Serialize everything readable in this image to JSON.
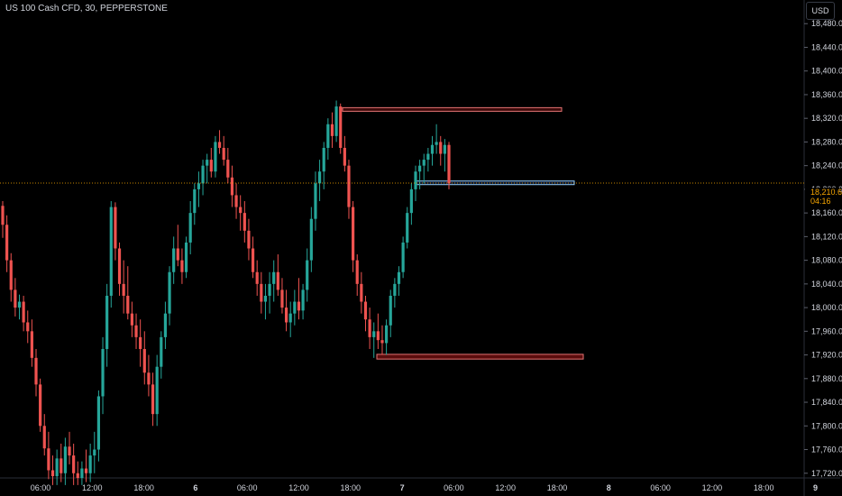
{
  "header": {
    "title": "US 100 Cash CFD, 30, PEPPERSTONE"
  },
  "currency_button": "USD",
  "current_price": {
    "value": "18,210.6",
    "countdown": "04:16",
    "color": "#f7a600"
  },
  "colors": {
    "up": "#26a69a",
    "down": "#ef5350",
    "background": "#000000"
  },
  "chart_data": {
    "type": "candlestick",
    "y_ticks": [
      "18,480.0",
      "18,440.0",
      "18,400.0",
      "18,360.0",
      "18,320.0",
      "18,280.0",
      "18,240.0",
      "18,200.0",
      "18,160.0",
      "18,120.0",
      "18,080.0",
      "18,040.0",
      "18,000.0",
      "17,960.0",
      "17,920.0",
      "17,880.0",
      "17,840.0",
      "17,800.0",
      "17,760.0",
      "17,720.0"
    ],
    "x_ticks": [
      {
        "label": "06:00",
        "bold": false
      },
      {
        "label": "12:00",
        "bold": false
      },
      {
        "label": "18:00",
        "bold": false
      },
      {
        "label": "6",
        "bold": true
      },
      {
        "label": "06:00",
        "bold": false
      },
      {
        "label": "12:00",
        "bold": false
      },
      {
        "label": "18:00",
        "bold": false
      },
      {
        "label": "7",
        "bold": true
      },
      {
        "label": "06:00",
        "bold": false
      },
      {
        "label": "12:00",
        "bold": false
      },
      {
        "label": "18:00",
        "bold": false
      },
      {
        "label": "8",
        "bold": true
      },
      {
        "label": "06:00",
        "bold": false
      },
      {
        "label": "12:00",
        "bold": false
      },
      {
        "label": "18:00",
        "bold": false
      },
      {
        "label": "9",
        "bold": true
      }
    ],
    "ylim": [
      17712,
      18520
    ],
    "price_line": 18210.6,
    "zones": [
      {
        "name": "top",
        "y_from": 18333,
        "y_to": 18338,
        "x_from": 380,
        "x_to": 623,
        "fill": "#3a0a0a",
        "stroke": "#e57373"
      },
      {
        "name": "mid",
        "y_from": 18210,
        "y_to": 18214,
        "x_from": 460,
        "x_to": 637,
        "fill": "#0d1a33",
        "stroke": "#90caf9"
      },
      {
        "name": "low",
        "y_from": 17913,
        "y_to": 17921,
        "x_from": 418,
        "x_to": 647,
        "fill": "#5a0d0d",
        "stroke": "#e57373"
      }
    ],
    "candles": [
      [
        18172,
        18180,
        18118,
        18140
      ],
      [
        18140,
        18156,
        18060,
        18080
      ],
      [
        18080,
        18092,
        18010,
        18030
      ],
      [
        18030,
        18050,
        17985,
        18000
      ],
      [
        18000,
        18022,
        17980,
        18010
      ],
      [
        18010,
        18020,
        17960,
        17975
      ],
      [
        17975,
        17995,
        17940,
        17960
      ],
      [
        17960,
        17980,
        17900,
        17915
      ],
      [
        17915,
        17930,
        17850,
        17870
      ],
      [
        17870,
        17880,
        17790,
        17800
      ],
      [
        17800,
        17820,
        17750,
        17762
      ],
      [
        17762,
        17790,
        17710,
        17725
      ],
      [
        17725,
        17750,
        17700,
        17715
      ],
      [
        17715,
        17760,
        17700,
        17745
      ],
      [
        17745,
        17770,
        17705,
        17720
      ],
      [
        17720,
        17780,
        17700,
        17765
      ],
      [
        17765,
        17790,
        17735,
        17750
      ],
      [
        17750,
        17770,
        17700,
        17720
      ],
      [
        17720,
        17740,
        17700,
        17712
      ],
      [
        17712,
        17740,
        17700,
        17728
      ],
      [
        17728,
        17760,
        17705,
        17720
      ],
      [
        17720,
        17770,
        17705,
        17750
      ],
      [
        17750,
        17790,
        17720,
        17760
      ],
      [
        17760,
        17860,
        17740,
        17850
      ],
      [
        17850,
        17950,
        17820,
        17930
      ],
      [
        17930,
        18040,
        17900,
        18020
      ],
      [
        18020,
        18180,
        18000,
        18170
      ],
      [
        18170,
        18178,
        18080,
        18100
      ],
      [
        18100,
        18110,
        18020,
        18040
      ],
      [
        18040,
        18080,
        17990,
        18020
      ],
      [
        18020,
        18070,
        17980,
        17990
      ],
      [
        17990,
        18010,
        17950,
        17970
      ],
      [
        17970,
        17990,
        17930,
        17950
      ],
      [
        17950,
        17980,
        17900,
        17930
      ],
      [
        17930,
        17960,
        17870,
        17890
      ],
      [
        17890,
        17920,
        17850,
        17870
      ],
      [
        17870,
        17890,
        17800,
        17820
      ],
      [
        17820,
        17920,
        17800,
        17900
      ],
      [
        17900,
        17960,
        17880,
        17950
      ],
      [
        17950,
        18010,
        17930,
        17990
      ],
      [
        17990,
        18070,
        17970,
        18060
      ],
      [
        18060,
        18120,
        18040,
        18100
      ],
      [
        18100,
        18140,
        18070,
        18080
      ],
      [
        18080,
        18100,
        18040,
        18060
      ],
      [
        18060,
        18120,
        18050,
        18110
      ],
      [
        18110,
        18180,
        18090,
        18160
      ],
      [
        18160,
        18210,
        18140,
        18200
      ],
      [
        18200,
        18230,
        18170,
        18210
      ],
      [
        18210,
        18250,
        18190,
        18240
      ],
      [
        18240,
        18260,
        18210,
        18250
      ],
      [
        18250,
        18270,
        18220,
        18230
      ],
      [
        18230,
        18290,
        18220,
        18280
      ],
      [
        18280,
        18300,
        18260,
        18270
      ],
      [
        18270,
        18290,
        18240,
        18250
      ],
      [
        18250,
        18270,
        18210,
        18220
      ],
      [
        18220,
        18240,
        18170,
        18190
      ],
      [
        18190,
        18210,
        18150,
        18170
      ],
      [
        18170,
        18190,
        18130,
        18160
      ],
      [
        18160,
        18180,
        18110,
        18130
      ],
      [
        18130,
        18150,
        18080,
        18100
      ],
      [
        18100,
        18120,
        18050,
        18060
      ],
      [
        18060,
        18080,
        18020,
        18040
      ],
      [
        18040,
        18060,
        17990,
        18010
      ],
      [
        18010,
        18040,
        17980,
        18020
      ],
      [
        18020,
        18060,
        17990,
        18040
      ],
      [
        18040,
        18080,
        18010,
        18060
      ],
      [
        18060,
        18090,
        18020,
        18030
      ],
      [
        18030,
        18050,
        17990,
        18000
      ],
      [
        18000,
        18030,
        17960,
        17975
      ],
      [
        17975,
        18010,
        17950,
        17990
      ],
      [
        17990,
        18030,
        17970,
        18010
      ],
      [
        18010,
        18050,
        17980,
        17995
      ],
      [
        17995,
        18040,
        17980,
        18030
      ],
      [
        18030,
        18100,
        18010,
        18080
      ],
      [
        18080,
        18170,
        18060,
        18150
      ],
      [
        18150,
        18230,
        18130,
        18210
      ],
      [
        18210,
        18250,
        18180,
        18230
      ],
      [
        18230,
        18280,
        18200,
        18270
      ],
      [
        18270,
        18320,
        18250,
        18310
      ],
      [
        18310,
        18330,
        18270,
        18290
      ],
      [
        18290,
        18350,
        18280,
        18340
      ],
      [
        18340,
        18345,
        18260,
        18270
      ],
      [
        18270,
        18290,
        18230,
        18240
      ],
      [
        18240,
        18250,
        18150,
        18170
      ],
      [
        18170,
        18180,
        18060,
        18080
      ],
      [
        18080,
        18090,
        18020,
        18040
      ],
      [
        18040,
        18060,
        17990,
        18010
      ],
      [
        18010,
        18020,
        17960,
        17980
      ],
      [
        17980,
        18000,
        17930,
        17950
      ],
      [
        17950,
        17975,
        17915,
        17960
      ],
      [
        17960,
        17990,
        17930,
        17945
      ],
      [
        17945,
        17970,
        17920,
        17940
      ],
      [
        17940,
        17980,
        17920,
        17970
      ],
      [
        17970,
        18030,
        17950,
        18020
      ],
      [
        18020,
        18050,
        18000,
        18040
      ],
      [
        18040,
        18070,
        18020,
        18060
      ],
      [
        18060,
        18120,
        18050,
        18110
      ],
      [
        18110,
        18170,
        18100,
        18160
      ],
      [
        18160,
        18210,
        18140,
        18200
      ],
      [
        18200,
        18240,
        18180,
        18230
      ],
      [
        18230,
        18250,
        18200,
        18240
      ],
      [
        18240,
        18260,
        18210,
        18250
      ],
      [
        18250,
        18270,
        18230,
        18260
      ],
      [
        18260,
        18290,
        18240,
        18275
      ],
      [
        18275,
        18310,
        18260,
        18280
      ],
      [
        18280,
        18290,
        18240,
        18260
      ],
      [
        18260,
        18285,
        18230,
        18275
      ],
      [
        18275,
        18280,
        18200,
        18210
      ]
    ]
  }
}
